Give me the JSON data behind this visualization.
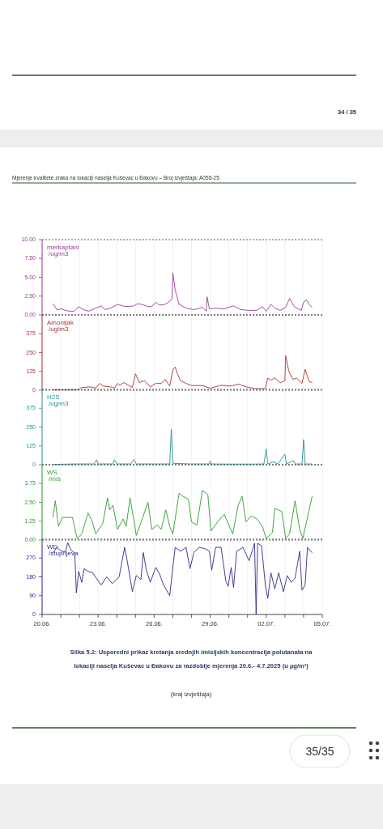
{
  "chart_data": [
    {
      "type": "line",
      "ylabel": "merkaptani /ug/m3",
      "ylim": [
        0,
        10
      ],
      "yticks": [
        {
          "value": 0,
          "label": "0.00"
        },
        {
          "value": 2.5,
          "label": "2.50"
        },
        {
          "value": 5,
          "label": "5.00"
        },
        {
          "value": 7.5,
          "label": "7.50"
        },
        {
          "value": 10,
          "label": "10.00"
        }
      ],
      "xlim": [
        "2025-06-20",
        "2025-07-05"
      ],
      "xticks": [
        {
          "value": "2025-06-20",
          "label": null
        },
        {
          "value": "2025-06-21",
          "label": null
        },
        {
          "value": "2025-06-22",
          "label": null
        },
        {
          "value": "2025-06-23",
          "label": null
        },
        {
          "value": "2025-06-24",
          "label": null
        },
        {
          "value": "2025-06-25",
          "label": null
        },
        {
          "value": "2025-06-26",
          "label": null
        },
        {
          "value": "2025-06-27",
          "label": null
        },
        {
          "value": "2025-06-28",
          "label": null
        },
        {
          "value": "2025-06-29",
          "label": null
        },
        {
          "value": "2025-06-30",
          "label": null
        },
        {
          "value": "2025-07-01",
          "label": null
        },
        {
          "value": "2025-07-02",
          "label": null
        },
        {
          "value": "2025-07-03",
          "label": null
        },
        {
          "value": "2025-07-04",
          "label": null
        },
        {
          "value": "2025-07-05",
          "label": null
        }
      ],
      "grid": "x",
      "tick_labels": "y",
      "annotations": [
        "34 / 35",
        "Mjerenje kvalitete zraka na lokaciji naselja Kuševac u Đakovu – Broj izvještaja:  A055-25"
      ],
      "series": [
        {
          "color": "#9b3a9b",
          "x": [
            "2025-06-20T14:00",
            "2025-06-20T19:00",
            "2025-06-21T01:00",
            "2025-06-21T06:00",
            "2025-06-21T11:00",
            "2025-06-21T17:00",
            "2025-06-21T23:00",
            "2025-06-22T05:00",
            "2025-06-22T12:00",
            "2025-06-22T21:00",
            "2025-06-23T04:00",
            "2025-06-23T09:00",
            "2025-06-23T16:00",
            "2025-06-24T01:00",
            "2025-06-24T11:00",
            "2025-06-24T22:00",
            "2025-06-25T03:00",
            "2025-06-25T08:00",
            "2025-06-25T16:00",
            "2025-06-25T21:00",
            "2025-06-26T02:00",
            "2025-06-26T07:00",
            "2025-06-26T14:00",
            "2025-06-26T20:00",
            "2025-06-26T23:00",
            "2025-06-27T00:00",
            "2025-06-27T03:00",
            "2025-06-27T08:00",
            "2025-06-27T17:00",
            "2025-06-28T03:00",
            "2025-06-28T14:00",
            "2025-06-28T19:00",
            "2025-06-28T20:00",
            "2025-06-28T23:00",
            "2025-06-29T07:00",
            "2025-06-29T18:00",
            "2025-06-30T06:00",
            "2025-06-30T15:00",
            "2025-07-01T02:00",
            "2025-07-01T12:00",
            "2025-07-01T19:00",
            "2025-07-02T00:00",
            "2025-07-02T06:00",
            "2025-07-02T11:00",
            "2025-07-02T18:00",
            "2025-07-03T01:00",
            "2025-07-03T06:00",
            "2025-07-03T12:00",
            "2025-07-03T21:00",
            "2025-07-04T00:00",
            "2025-07-04T04:00",
            "2025-07-04T07:00",
            "2025-07-04T11:00"
          ],
          "values": [
            1.5,
            0.7,
            0.8,
            0.6,
            0.5,
            0.5,
            1.1,
            0.7,
            0.5,
            0.9,
            1.2,
            0.7,
            0.9,
            1.4,
            1.1,
            1.2,
            1.5,
            1.4,
            1.1,
            1.1,
            1.7,
            1.3,
            1.4,
            1.8,
            2.2,
            5.6,
            3.3,
            1.4,
            0.9,
            0.7,
            1.0,
            0.5,
            2.4,
            0.8,
            0.9,
            0.8,
            1.2,
            0.7,
            0.6,
            0.6,
            1.1,
            0.5,
            1.4,
            0.9,
            0.6,
            1.0,
            2.2,
            1.1,
            0.6,
            1.7,
            2.0,
            1.4,
            1.0
          ]
        }
      ]
    },
    {
      "type": "line",
      "ylabel": "Amonijak /ug/m3",
      "ylim": [
        0,
        500
      ],
      "yticks": [
        0,
        125,
        250,
        375
      ],
      "xlim": [
        "2025-06-20",
        "2025-07-05"
      ],
      "xticks": [
        {
          "value": "2025-06-20",
          "label": null
        },
        {
          "value": "2025-06-21",
          "label": null
        },
        {
          "value": "2025-06-22",
          "label": null
        },
        {
          "value": "2025-06-23",
          "label": null
        },
        {
          "value": "2025-06-24",
          "label": null
        },
        {
          "value": "2025-06-25",
          "label": null
        },
        {
          "value": "2025-06-26",
          "label": null
        },
        {
          "value": "2025-06-27",
          "label": null
        },
        {
          "value": "2025-06-28",
          "label": null
        },
        {
          "value": "2025-06-29",
          "label": null
        },
        {
          "value": "2025-06-30",
          "label": null
        },
        {
          "value": "2025-07-01",
          "label": null
        },
        {
          "value": "2025-07-02",
          "label": null
        },
        {
          "value": "2025-07-03",
          "label": null
        },
        {
          "value": "2025-07-04",
          "label": null
        },
        {
          "value": "2025-07-05",
          "label": null
        }
      ],
      "grid": "x",
      "tick_labels": "y",
      "series": [
        {
          "color": "#a33434",
          "x": [
            "2025-06-20T14:00",
            "2025-06-21T22:00",
            "2025-06-22T03:00",
            "2025-06-22T14:00",
            "2025-06-22T21:00",
            "2025-06-23T02:00",
            "2025-06-23T07:00",
            "2025-06-23T16:00",
            "2025-06-23T21:00",
            "2025-06-24T01:00",
            "2025-06-24T04:00",
            "2025-06-24T09:00",
            "2025-06-24T15:00",
            "2025-06-24T20:00",
            "2025-06-25T00:00",
            "2025-06-25T05:00",
            "2025-06-25T12:00",
            "2025-06-25T19:00",
            "2025-06-26T02:00",
            "2025-06-26T09:00",
            "2025-06-26T14:00",
            "2025-06-26T20:00",
            "2025-06-27T00:00",
            "2025-06-27T03:00",
            "2025-06-27T06:00",
            "2025-06-27T10:00",
            "2025-06-27T17:00",
            "2025-06-28T00:00",
            "2025-06-28T14:00",
            "2025-06-29T00:00",
            "2025-06-29T14:00",
            "2025-06-30T01:00",
            "2025-06-30T13:00",
            "2025-06-30T22:00",
            "2025-07-01T09:00",
            "2025-07-01T23:00",
            "2025-07-02T02:00",
            "2025-07-02T06:00",
            "2025-07-02T11:00",
            "2025-07-02T18:00",
            "2025-07-03T00:00",
            "2025-07-03T01:00",
            "2025-07-03T05:00",
            "2025-07-03T10:00",
            "2025-07-03T15:00",
            "2025-07-03T22:00",
            "2025-07-04T02:00",
            "2025-07-04T07:00",
            "2025-07-04T11:00"
          ],
          "values": [
            2,
            2,
            18,
            22,
            14,
            45,
            27,
            22,
            14,
            45,
            33,
            51,
            33,
            18,
            109,
            51,
            63,
            22,
            45,
            45,
            72,
            27,
            136,
            154,
            109,
            63,
            45,
            31,
            31,
            13,
            33,
            27,
            40,
            22,
            11,
            11,
            81,
            67,
            81,
            49,
            63,
            230,
            127,
            72,
            81,
            45,
            139,
            58,
            51
          ]
        }
      ]
    },
    {
      "type": "line",
      "ylabel": "H2S /ug/m3",
      "ylim": [
        0,
        500
      ],
      "yticks": [
        0,
        125,
        250,
        375
      ],
      "xlim": [
        "2025-06-20",
        "2025-07-05"
      ],
      "xticks": [
        {
          "value": "2025-06-20",
          "label": null
        },
        {
          "value": "2025-06-21",
          "label": null
        },
        {
          "value": "2025-06-22",
          "label": null
        },
        {
          "value": "2025-06-23",
          "label": null
        },
        {
          "value": "2025-06-24",
          "label": null
        },
        {
          "value": "2025-06-25",
          "label": null
        },
        {
          "value": "2025-06-26",
          "label": null
        },
        {
          "value": "2025-06-27",
          "label": null
        },
        {
          "value": "2025-06-28",
          "label": null
        },
        {
          "value": "2025-06-29",
          "label": null
        },
        {
          "value": "2025-06-30",
          "label": null
        },
        {
          "value": "2025-07-01",
          "label": null
        },
        {
          "value": "2025-07-02",
          "label": null
        },
        {
          "value": "2025-07-03",
          "label": null
        },
        {
          "value": "2025-07-04",
          "label": null
        },
        {
          "value": "2025-07-05",
          "label": null
        }
      ],
      "grid": "x",
      "tick_labels": "y",
      "series": [
        {
          "color": "#2a9090",
          "x": [
            "2025-06-20T14:00",
            "2025-06-21T20:00",
            "2025-06-22T19:00",
            "2025-06-22T22:00",
            "2025-06-23T00:00",
            "2025-06-23T19:00",
            "2025-06-23T21:00",
            "2025-06-24T00:00",
            "2025-06-24T18:00",
            "2025-06-24T22:00",
            "2025-06-25T01:00",
            "2025-06-25T23:00",
            "2025-06-26T20:00",
            "2025-06-26T22:00",
            "2025-06-27T00:00",
            "2025-06-28T00:00",
            "2025-06-28T23:00",
            "2025-06-29T00:00",
            "2025-06-29T01:00",
            "2025-06-30T01:00",
            "2025-07-01T07:00",
            "2025-07-01T21:00",
            "2025-07-02T00:00",
            "2025-07-02T02:00",
            "2025-07-02T09:00",
            "2025-07-02T15:00",
            "2025-07-03T00:00",
            "2025-07-03T02:00",
            "2025-07-03T11:00",
            "2025-07-03T13:00",
            "2025-07-03T22:00",
            "2025-07-04T00:00",
            "2025-07-04T02:00",
            "2025-07-04T11:00"
          ],
          "values": [
            2,
            5,
            5,
            33,
            5,
            5,
            33,
            5,
            5,
            36,
            5,
            5,
            5,
            235,
            9,
            5,
            5,
            25,
            5,
            4,
            4,
            5,
            105,
            5,
            18,
            5,
            69,
            5,
            27,
            5,
            5,
            167,
            5,
            5
          ]
        }
      ]
    },
    {
      "type": "line",
      "ylabel": "WS /m/s",
      "ylim": [
        0,
        5
      ],
      "yticks": [
        {
          "value": 0,
          "label": "0.00"
        },
        {
          "value": 1.25,
          "label": "1.25"
        },
        {
          "value": 2.5,
          "label": "2.50"
        },
        {
          "value": 3.75,
          "label": "3.75"
        }
      ],
      "xlim": [
        "2025-06-20",
        "2025-07-05"
      ],
      "xticks": [
        {
          "value": "2025-06-20",
          "label": null
        },
        {
          "value": "2025-06-21",
          "label": null
        },
        {
          "value": "2025-06-22",
          "label": null
        },
        {
          "value": "2025-06-23",
          "label": null
        },
        {
          "value": "2025-06-24",
          "label": null
        },
        {
          "value": "2025-06-25",
          "label": null
        },
        {
          "value": "2025-06-26",
          "label": null
        },
        {
          "value": "2025-06-27",
          "label": null
        },
        {
          "value": "2025-06-28",
          "label": null
        },
        {
          "value": "2025-06-29",
          "label": null
        },
        {
          "value": "2025-06-30",
          "label": null
        },
        {
          "value": "2025-07-01",
          "label": null
        },
        {
          "value": "2025-07-02",
          "label": null
        },
        {
          "value": "2025-07-03",
          "label": null
        },
        {
          "value": "2025-07-04",
          "label": null
        },
        {
          "value": "2025-07-05",
          "label": null
        }
      ],
      "grid": "x",
      "tick_labels": "y",
      "series": [
        {
          "color": "#2e9a2e",
          "x": [
            "2025-06-20T14:00",
            "2025-06-20T17:00",
            "2025-06-20T21:00",
            "2025-06-21T02:00",
            "2025-06-21T08:00",
            "2025-06-21T15:00",
            "2025-06-21T21:00",
            "2025-06-22T03:00",
            "2025-06-22T11:00",
            "2025-06-22T16:00",
            "2025-06-22T21:00",
            "2025-06-23T06:00",
            "2025-06-23T12:00",
            "2025-06-23T15:00",
            "2025-06-23T19:00",
            "2025-06-24T01:00",
            "2025-06-24T08:00",
            "2025-06-24T12:00",
            "2025-06-24T17:00",
            "2025-06-24T22:00",
            "2025-06-25T01:00",
            "2025-06-25T08:00",
            "2025-06-25T16:00",
            "2025-06-25T21:00",
            "2025-06-26T04:00",
            "2025-06-26T09:00",
            "2025-06-26T15:00",
            "2025-06-26T20:00",
            "2025-06-27T00:00",
            "2025-06-27T08:00",
            "2025-06-27T13:00",
            "2025-06-27T20:00",
            "2025-06-28T00:00",
            "2025-06-28T07:00",
            "2025-06-28T14:00",
            "2025-06-28T21:00",
            "2025-06-29T01:00",
            "2025-06-29T11:00",
            "2025-06-29T18:00",
            "2025-06-30T05:00",
            "2025-06-30T12:00",
            "2025-06-30T17:00",
            "2025-06-30T22:00",
            "2025-07-01T05:00",
            "2025-07-01T12:00",
            "2025-07-01T19:00",
            "2025-07-02T00:00",
            "2025-07-02T08:00",
            "2025-07-02T11:00",
            "2025-07-02T20:00",
            "2025-07-03T01:00",
            "2025-07-03T06:00",
            "2025-07-03T13:00",
            "2025-07-03T19:00",
            "2025-07-03T23:00",
            "2025-07-04T05:00",
            "2025-07-04T11:00"
          ],
          "values": [
            1.5,
            2.6,
            0.9,
            1.5,
            1.5,
            1.5,
            0.1,
            0.4,
            1.8,
            1.3,
            0.4,
            1.1,
            2.8,
            2.0,
            2.3,
            0.7,
            1.4,
            0.9,
            2.8,
            1.3,
            0.3,
            1.3,
            2.5,
            0.7,
            1.0,
            0.7,
            2.0,
            0.9,
            0.4,
            3.1,
            2.9,
            2.7,
            1.2,
            1.0,
            3.3,
            3.0,
            0.6,
            1.3,
            1.7,
            0.4,
            2.3,
            2.9,
            1.2,
            1.6,
            1.4,
            0.9,
            0.1,
            0.5,
            2.1,
            1.9,
            0.1,
            0.4,
            2.6,
            0.7,
            0.1,
            1.5,
            2.9
          ]
        }
      ]
    },
    {
      "type": "line",
      "ylabel": "WD /stupnjeva",
      "ylim": [
        0,
        360
      ],
      "yticks": [
        0,
        90,
        180,
        270
      ],
      "xlim": [
        "2025-06-20",
        "2025-07-05"
      ],
      "xticks": [
        {
          "value": "2025-06-20",
          "label": "20.06."
        },
        {
          "value": "2025-06-21",
          "label": null
        },
        {
          "value": "2025-06-22",
          "label": null
        },
        {
          "value": "2025-06-23",
          "label": "23.06."
        },
        {
          "value": "2025-06-24",
          "label": null
        },
        {
          "value": "2025-06-25",
          "label": null
        },
        {
          "value": "2025-06-26",
          "label": "26.06."
        },
        {
          "value": "2025-06-27",
          "label": null
        },
        {
          "value": "2025-06-28",
          "label": null
        },
        {
          "value": "2025-06-29",
          "label": "29.06."
        },
        {
          "value": "2025-06-30",
          "label": null
        },
        {
          "value": "2025-07-01",
          "label": null
        },
        {
          "value": "2025-07-02",
          "label": "02.07."
        },
        {
          "value": "2025-07-03",
          "label": null
        },
        {
          "value": "2025-07-04",
          "label": null
        },
        {
          "value": "2025-07-05",
          "label": "05.07."
        }
      ],
      "grid": "x",
      "annotations": [
        "Slika 5.2: Usporedni prikaz kretanja srednjih imisijskih koncentracija polutanata na lokaciji naselja Kuševac u Đakovu za razdoblje mjerenja 20.6.- 4.7.2025 (u µg/m³)",
        "(kraj izvještaja)",
        "35/35"
      ],
      "series": [
        {
          "color": "#2b2b8a",
          "x": [
            "2025-06-20T14:00",
            "2025-06-20T19:00",
            "2025-06-21T01:00",
            "2025-06-21T06:00",
            "2025-06-21T09:00",
            "2025-06-21T13:00",
            "2025-06-21T18:00",
            "2025-06-21T20:00",
            "2025-06-21T23:00",
            "2025-06-22T03:00",
            "2025-06-22T06:00",
            "2025-06-22T11:00",
            "2025-06-22T17:00",
            "2025-06-23T00:00",
            "2025-06-23T04:00",
            "2025-06-23T11:00",
            "2025-06-23T18:00",
            "2025-06-24T03:00",
            "2025-06-24T10:00",
            "2025-06-24T13:00",
            "2025-06-24T20:00",
            "2025-06-25T01:00",
            "2025-06-25T07:00",
            "2025-06-25T10:00",
            "2025-06-25T14:00",
            "2025-06-25T19:00",
            "2025-06-26T02:00",
            "2025-06-26T07:00",
            "2025-06-26T12:00",
            "2025-06-26T20:00",
            "2025-06-26T23:00",
            "2025-06-27T03:00",
            "2025-06-27T10:00",
            "2025-06-27T17:00",
            "2025-06-27T22:00",
            "2025-06-28T03:00",
            "2025-06-28T10:00",
            "2025-06-28T17:00",
            "2025-06-28T23:00",
            "2025-06-29T02:00",
            "2025-06-29T07:00",
            "2025-06-29T14:00",
            "2025-06-29T20:00",
            "2025-06-29T23:00",
            "2025-06-30T03:00",
            "2025-06-30T06:00",
            "2025-06-30T10:00",
            "2025-06-30T18:00",
            "2025-07-01T02:00",
            "2025-07-01T09:00",
            "2025-07-01T11:00",
            "2025-07-01T13:00",
            "2025-07-01T18:00",
            "2025-07-01T23:00",
            "2025-07-02T02:00",
            "2025-07-02T06:00",
            "2025-07-02T11:00",
            "2025-07-02T16:00",
            "2025-07-02T22:00",
            "2025-07-03T03:00",
            "2025-07-03T08:00",
            "2025-07-03T13:00",
            "2025-07-03T19:00",
            "2025-07-03T22:00",
            "2025-07-04T02:00",
            "2025-07-04T05:00",
            "2025-07-04T09:00",
            "2025-07-04T11:00"
          ],
          "values": [
            296,
            321,
            302,
            300,
            343,
            309,
            292,
            103,
            206,
            154,
            219,
            206,
            199,
            161,
            141,
            180,
            148,
            180,
            321,
            264,
            109,
            186,
            167,
            296,
            212,
            154,
            225,
            193,
            141,
            90,
            193,
            321,
            302,
            321,
            219,
            296,
            321,
            315,
            302,
            212,
            321,
            321,
            161,
            135,
            225,
            129,
            302,
            321,
            257,
            341,
            0,
            341,
            328,
            135,
            77,
            199,
            122,
            199,
            109,
            186,
            154,
            173,
            302,
            116,
            141,
            321,
            302,
            296
          ]
        }
      ]
    }
  ]
}
